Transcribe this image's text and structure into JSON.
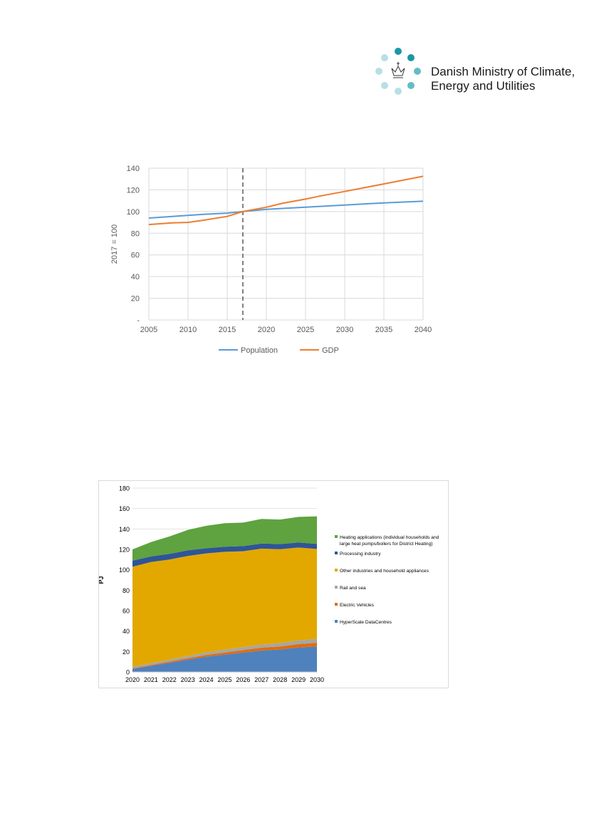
{
  "header": {
    "logo_line1": "Danish Ministry of Climate,",
    "logo_line2": "Energy and Utilities"
  },
  "colors": {
    "logo_dark": "#1c96a3",
    "logo_mid": "#63bcc6",
    "logo_light": "#b7dfe4"
  },
  "chart_data": [
    {
      "type": "line",
      "title": "",
      "xlabel": "",
      "ylabel": "2017 = 100",
      "xlim": [
        2005,
        2040
      ],
      "ylim": [
        0,
        140
      ],
      "x_ticks": [
        "2005",
        "2010",
        "2015",
        "2020",
        "2025",
        "2030",
        "2035",
        "2040"
      ],
      "y_ticks": [
        "-",
        "20",
        "40",
        "60",
        "80",
        "100",
        "120",
        "140"
      ],
      "grid": true,
      "legend": "bottom",
      "vertical_marker": 2017,
      "series": [
        {
          "name": "Population",
          "color": "#5b9bd5",
          "x": [
            2005,
            2008,
            2010,
            2012,
            2015,
            2017,
            2020,
            2025,
            2030,
            2035,
            2040
          ],
          "values": [
            94,
            95.5,
            96.5,
            97.5,
            98.5,
            100,
            102,
            104,
            106,
            108,
            109.5
          ]
        },
        {
          "name": "GDP",
          "color": "#ed7d31",
          "x": [
            2005,
            2008,
            2010,
            2012,
            2015,
            2017,
            2020,
            2022,
            2025,
            2027,
            2030,
            2035,
            2040
          ],
          "values": [
            88,
            89.5,
            90,
            92,
            95.5,
            100,
            104,
            107.5,
            111.5,
            114.5,
            118.5,
            125.5,
            132.5
          ]
        }
      ]
    },
    {
      "type": "area",
      "title": "",
      "xlabel": "",
      "ylabel": "PJ",
      "ylim": [
        0,
        180
      ],
      "categories": [
        "2020",
        "2021",
        "2022",
        "2023",
        "2024",
        "2025",
        "2026",
        "2027",
        "2028",
        "2029",
        "2030"
      ],
      "y_ticks": [
        "0",
        "20",
        "40",
        "60",
        "80",
        "100",
        "120",
        "140",
        "160",
        "180"
      ],
      "grid": true,
      "legend": "right",
      "stacked": true,
      "series": [
        {
          "name": "HyperScale DataCentres",
          "color": "#4f81bd",
          "values": [
            3,
            6,
            9,
            12,
            15,
            17,
            19,
            21,
            22,
            24,
            25
          ]
        },
        {
          "name": "Electric Vehicles",
          "color": "#e36c0a",
          "values": [
            0.5,
            0.8,
            1.1,
            1.4,
            1.7,
            2.0,
            2.4,
            2.8,
            3.0,
            3.3,
            3.6
          ]
        },
        {
          "name": "Rail and sea",
          "color": "#a6a6a6",
          "values": [
            1.5,
            1.8,
            2.0,
            2.2,
            2.4,
            2.6,
            2.8,
            3.0,
            3.2,
            3.5,
            3.8
          ]
        },
        {
          "name": "Other industries and household appliances",
          "color": "#e2a800",
          "values": [
            98,
            99,
            98,
            98,
            97,
            96,
            94,
            94,
            92,
            91,
            88
          ]
        },
        {
          "name": "Processing industry",
          "color": "#2f5597",
          "values": [
            6,
            5.5,
            5.5,
            5.5,
            5,
            5,
            5,
            5,
            5,
            5,
            5
          ]
        },
        {
          "name": "Heating applications (individual households and large heat pumps/boilers for District Heating)",
          "color": "#5ea33f",
          "values": [
            11,
            14,
            17,
            20,
            22,
            23,
            23,
            24,
            24,
            25,
            27
          ]
        }
      ]
    }
  ]
}
